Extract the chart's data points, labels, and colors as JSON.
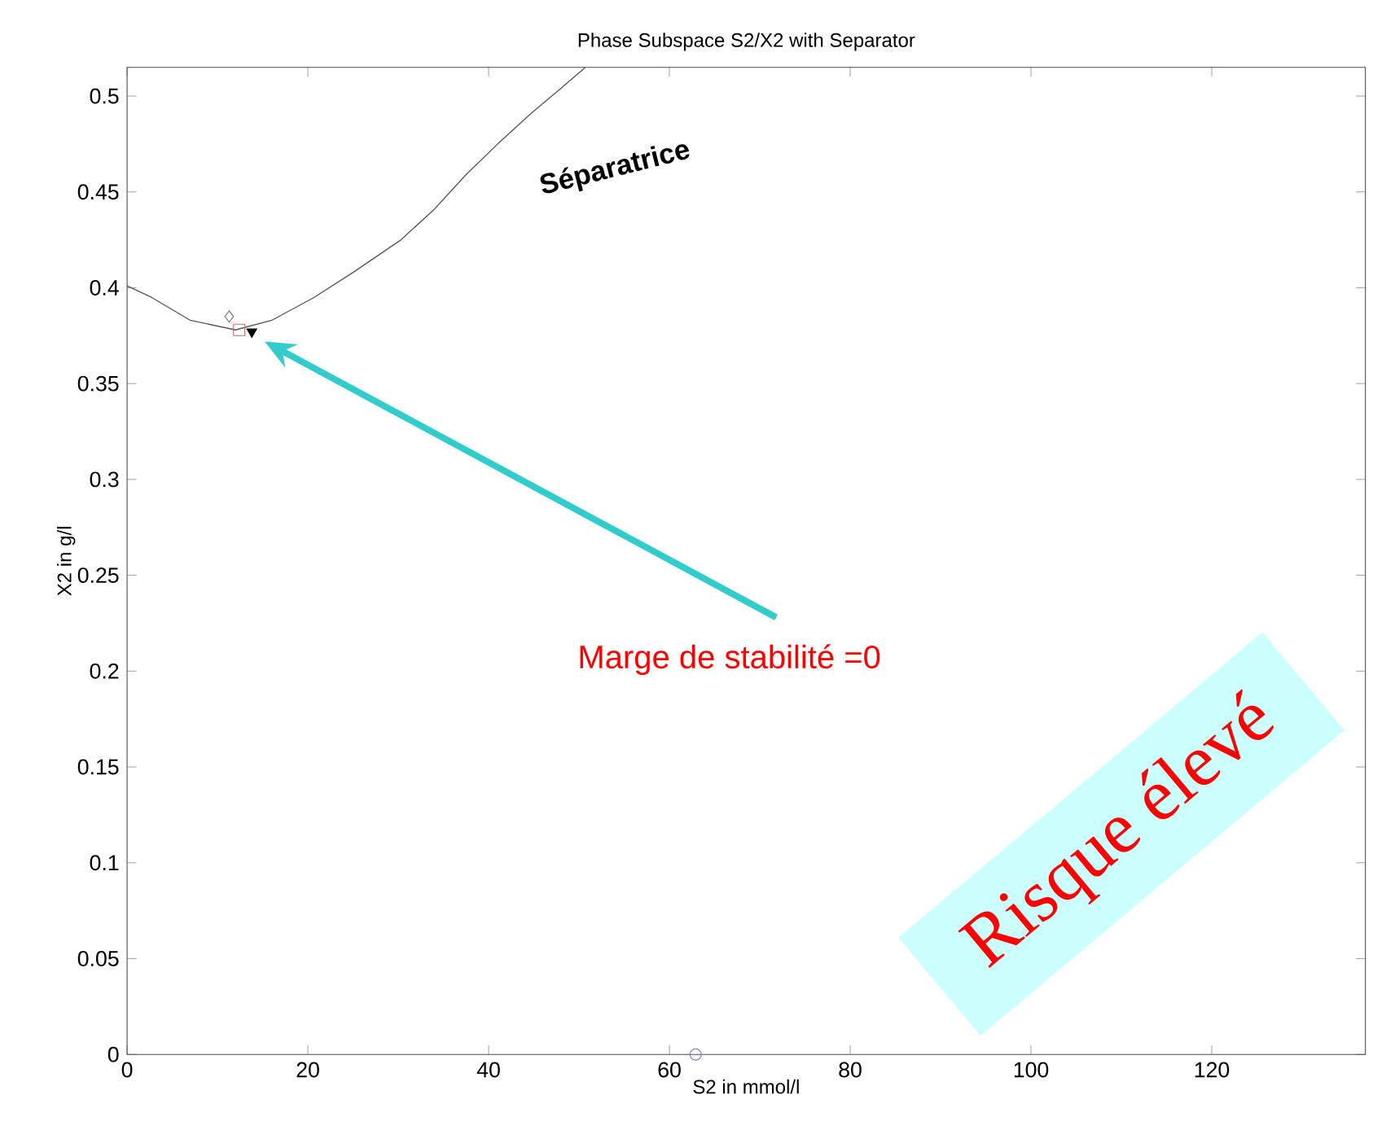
{
  "chart_data": {
    "type": "line",
    "title": "Phase Subspace S2/X2 with Separator",
    "xlabel": "S2 in mmol/l",
    "ylabel": "X2 in g/l",
    "xlim": [
      0,
      137
    ],
    "ylim": [
      0,
      0.515
    ],
    "xticks": [
      0,
      20,
      40,
      60,
      80,
      100,
      120
    ],
    "yticks": [
      0,
      0.05,
      0.1,
      0.15,
      0.2,
      0.25,
      0.3,
      0.35,
      0.4,
      0.45,
      0.5
    ],
    "series": [
      {
        "marker": "none",
        "color": "#555555",
        "x": [
          0,
          2.7,
          7,
          12,
          16,
          20.7,
          25,
          30.3,
          34,
          37.5,
          41,
          44.7,
          48,
          50.7
        ],
        "values": [
          0.401,
          0.395,
          0.383,
          0.378,
          0.383,
          0.395,
          0.408,
          0.425,
          0.441,
          0.459,
          0.475,
          0.491,
          0.504,
          0.515
        ]
      },
      {
        "type": "scatter",
        "marker": "diamond",
        "color": "#666666",
        "x": [
          11.3
        ],
        "values": [
          0.385
        ]
      },
      {
        "type": "scatter",
        "marker": "square",
        "color": "#cc6666",
        "x": [
          12.4
        ],
        "values": [
          0.378
        ]
      },
      {
        "type": "scatter",
        "marker": "triangle",
        "color": "#000000",
        "x": [
          13.8
        ],
        "values": [
          0.377
        ]
      },
      {
        "type": "scatter",
        "marker": "circle",
        "color": "#7070b0",
        "x": [
          62.9
        ],
        "values": [
          0
        ]
      }
    ],
    "annotations": [
      "Séparatrice",
      "Marge de stabilité =0",
      "Risque élevé"
    ]
  }
}
